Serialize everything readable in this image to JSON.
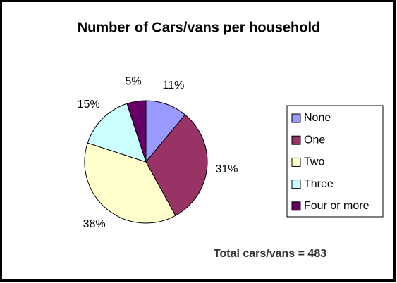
{
  "chart_data": {
    "type": "pie",
    "title": "Number of Cars/vans per household",
    "categories": [
      "None",
      "One",
      "Two",
      "Three",
      "Four or more"
    ],
    "values": [
      11,
      31,
      38,
      15,
      5
    ],
    "value_labels": [
      "11%",
      "31%",
      "38%",
      "15%",
      "5%"
    ],
    "colors": [
      "#9999ff",
      "#993366",
      "#ffffcc",
      "#ccffff",
      "#660066"
    ],
    "annotation": "Total cars/vans = 483",
    "legend": "right"
  }
}
